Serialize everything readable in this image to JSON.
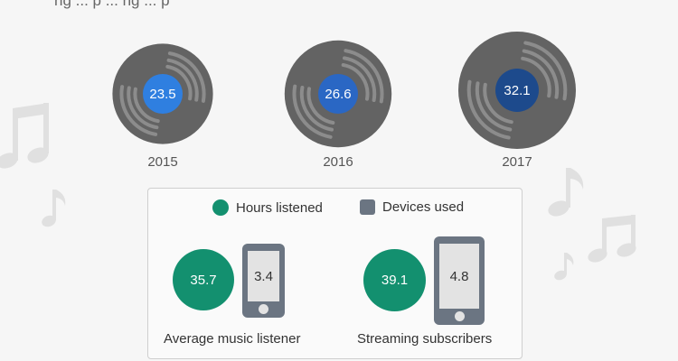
{
  "header": {
    "caption": "ng  ...  p  ...  ng  ...  p"
  },
  "colors": {
    "vinyl": "#636363",
    "groove": "#8c8c8c",
    "label_2015": "#2f7fe0",
    "label_2016": "#2a67c4",
    "label_2017": "#1d4a8c",
    "hours": "#13906f",
    "devices": "#6b7582",
    "note": "#e0e0e0"
  },
  "chart_data": [
    {
      "type": "bar",
      "categories": [
        "2015",
        "2016",
        "2017"
      ],
      "values": [
        23.5,
        26.6,
        32.1
      ]
    },
    {
      "type": "bar",
      "categories": [
        "Average music listener",
        "Streaming subscribers"
      ],
      "series": [
        {
          "name": "Hours listened",
          "values": [
            35.7,
            39.1
          ]
        },
        {
          "name": "Devices used",
          "values": [
            3.4,
            4.8
          ]
        }
      ]
    }
  ],
  "legend": {
    "hours_label": "Hours listened",
    "devices_label": "Devices used"
  },
  "groups": [
    {
      "label": "Average music listener",
      "hours": "35.7",
      "devices": "3.4"
    },
    {
      "label": "Streaming subscribers",
      "hours": "39.1",
      "devices": "4.8"
    }
  ],
  "icons": [
    "music-note-icon",
    "smartphone-icon",
    "vinyl-record-icon"
  ]
}
